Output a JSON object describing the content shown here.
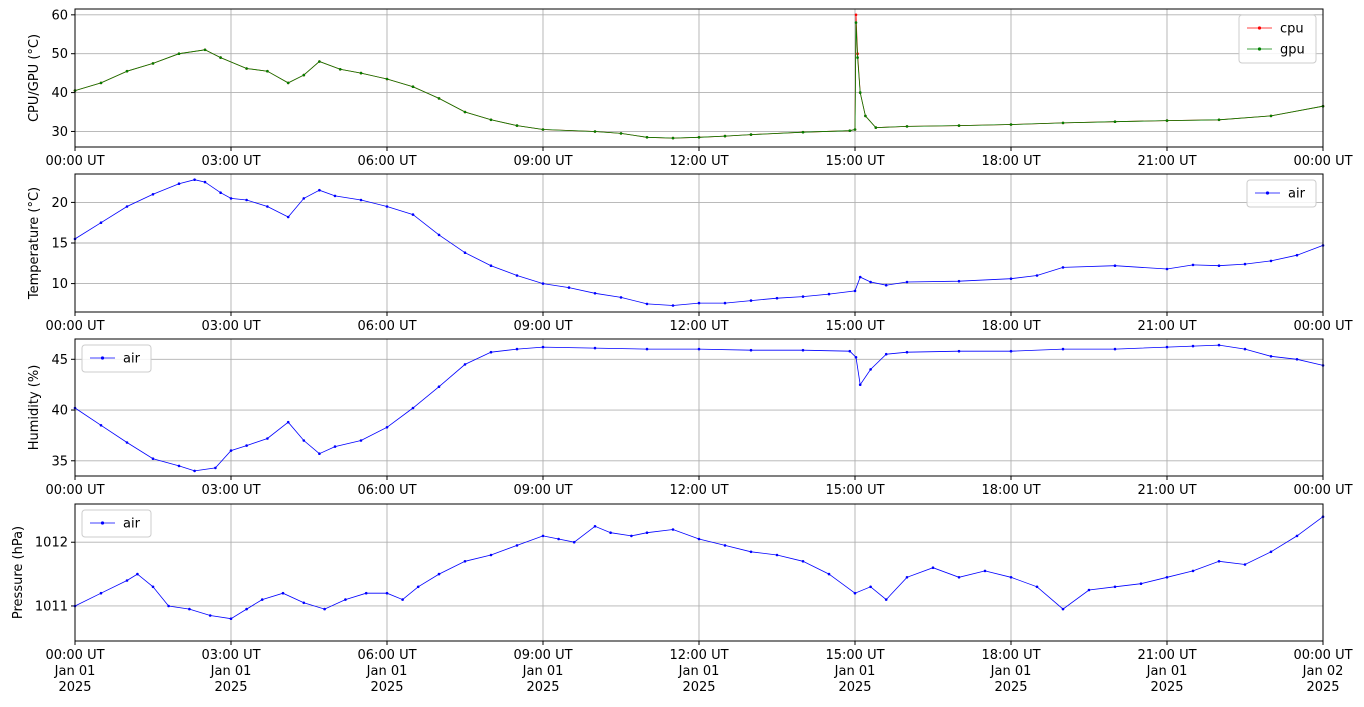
{
  "chart_data": [
    {
      "type": "line",
      "ylabel": "CPU/GPU (°C)",
      "ylim": [
        26,
        61.5
      ],
      "yticks": [
        30,
        40,
        50,
        60
      ],
      "grid": true,
      "legend_placement": "top-right",
      "x_hours": [
        0,
        3,
        6,
        9,
        12,
        15,
        18,
        21,
        24
      ],
      "x_tick_labels": [
        "00:00 UT",
        "03:00 UT",
        "06:00 UT",
        "09:00 UT",
        "12:00 UT",
        "15:00 UT",
        "18:00 UT",
        "21:00 UT",
        "00:00 UT"
      ],
      "series": [
        {
          "name": "cpu",
          "color": "#ff0000",
          "x": [
            0,
            0.5,
            1,
            1.5,
            2,
            2.5,
            2.8,
            3.3,
            3.7,
            4.1,
            4.4,
            4.7,
            5.1,
            5.5,
            6,
            6.5,
            7,
            7.5,
            8,
            8.5,
            9,
            10,
            10.5,
            11,
            11.5,
            12,
            12.5,
            13,
            14,
            14.9,
            15.0,
            15.02,
            15.05,
            15.1,
            15.2,
            15.4,
            16,
            17,
            18,
            19,
            20,
            21,
            22,
            23,
            24
          ],
          "y": [
            40.5,
            42.5,
            45.5,
            47.5,
            50,
            51,
            49,
            46.2,
            45.5,
            42.5,
            44.5,
            48,
            46,
            45,
            43.5,
            41.5,
            38.5,
            35,
            33,
            31.5,
            30.5,
            30,
            29.5,
            28.5,
            28.3,
            28.5,
            28.8,
            29.2,
            29.8,
            30.2,
            30.5,
            60,
            50,
            40,
            34,
            31,
            31.3,
            31.5,
            31.8,
            32.2,
            32.5,
            32.8,
            33,
            34,
            36.5
          ]
        },
        {
          "name": "gpu",
          "color": "#008000",
          "x": [
            0,
            0.5,
            1,
            1.5,
            2,
            2.5,
            2.8,
            3.3,
            3.7,
            4.1,
            4.4,
            4.7,
            5.1,
            5.5,
            6,
            6.5,
            7,
            7.5,
            8,
            8.5,
            9,
            10,
            10.5,
            11,
            11.5,
            12,
            12.5,
            13,
            14,
            14.9,
            15.0,
            15.02,
            15.05,
            15.1,
            15.2,
            15.4,
            16,
            17,
            18,
            19,
            20,
            21,
            22,
            23,
            24
          ],
          "y": [
            40.5,
            42.5,
            45.5,
            47.5,
            50,
            51,
            49,
            46.2,
            45.5,
            42.5,
            44.5,
            48,
            46,
            45,
            43.5,
            41.5,
            38.5,
            35,
            33,
            31.5,
            30.5,
            30,
            29.5,
            28.5,
            28.3,
            28.5,
            28.8,
            29.2,
            29.8,
            30.2,
            30.5,
            58,
            49,
            40,
            34,
            31,
            31.3,
            31.5,
            31.8,
            32.2,
            32.5,
            32.8,
            33,
            34,
            36.5
          ]
        }
      ]
    },
    {
      "type": "line",
      "ylabel": "Temperature (°C)",
      "ylim": [
        6.5,
        23.5
      ],
      "yticks": [
        10,
        15,
        20
      ],
      "grid": true,
      "legend_placement": "top-right",
      "x_hours": [
        0,
        3,
        6,
        9,
        12,
        15,
        18,
        21,
        24
      ],
      "x_tick_labels": [
        "00:00 UT",
        "03:00 UT",
        "06:00 UT",
        "09:00 UT",
        "12:00 UT",
        "15:00 UT",
        "18:00 UT",
        "21:00 UT",
        "00:00 UT"
      ],
      "series": [
        {
          "name": "air",
          "color": "#0000ff",
          "x": [
            0,
            0.5,
            1,
            1.5,
            2,
            2.3,
            2.5,
            2.8,
            3,
            3.3,
            3.7,
            4.1,
            4.4,
            4.7,
            5,
            5.5,
            6,
            6.5,
            7,
            7.5,
            8,
            8.5,
            9,
            9.5,
            10,
            10.5,
            11,
            11.5,
            12,
            12.5,
            13,
            13.5,
            14,
            14.5,
            15,
            15.1,
            15.3,
            15.6,
            16,
            17,
            18,
            18.5,
            19,
            20,
            21,
            21.5,
            22,
            22.5,
            23,
            23.5,
            24
          ],
          "y": [
            15.5,
            17.5,
            19.5,
            21,
            22.3,
            22.8,
            22.5,
            21.2,
            20.5,
            20.3,
            19.5,
            18.2,
            20.5,
            21.5,
            20.8,
            20.3,
            19.5,
            18.5,
            16,
            13.8,
            12.2,
            11,
            10,
            9.5,
            8.8,
            8.3,
            7.5,
            7.3,
            7.6,
            7.6,
            7.9,
            8.2,
            8.4,
            8.7,
            9.1,
            10.8,
            10.2,
            9.8,
            10.2,
            10.3,
            10.6,
            11,
            12,
            12.2,
            11.8,
            12.3,
            12.2,
            12.4,
            12.8,
            13.5,
            14.7
          ]
        }
      ]
    },
    {
      "type": "line",
      "ylabel": "Humidity (%)",
      "ylim": [
        33.5,
        47
      ],
      "yticks": [
        35,
        40,
        45
      ],
      "grid": true,
      "legend_placement": "top-left",
      "x_hours": [
        0,
        3,
        6,
        9,
        12,
        15,
        18,
        21,
        24
      ],
      "x_tick_labels": [
        "00:00 UT",
        "03:00 UT",
        "06:00 UT",
        "09:00 UT",
        "12:00 UT",
        "15:00 UT",
        "18:00 UT",
        "21:00 UT",
        "00:00 UT"
      ],
      "series": [
        {
          "name": "air",
          "color": "#0000ff",
          "x": [
            0,
            0.5,
            1,
            1.5,
            2,
            2.3,
            2.7,
            3,
            3.3,
            3.7,
            4.1,
            4.4,
            4.7,
            5,
            5.5,
            6,
            6.5,
            7,
            7.5,
            8,
            8.5,
            9,
            10,
            11,
            12,
            13,
            14,
            14.9,
            15.02,
            15.1,
            15.3,
            15.6,
            16,
            17,
            18,
            19,
            20,
            21,
            21.5,
            22,
            22.5,
            23,
            23.5,
            24
          ],
          "y": [
            40.2,
            38.5,
            36.8,
            35.2,
            34.5,
            34,
            34.3,
            36,
            36.5,
            37.2,
            38.8,
            37,
            35.7,
            36.4,
            37,
            38.3,
            40.2,
            42.3,
            44.5,
            45.7,
            46,
            46.2,
            46.1,
            46,
            46,
            45.9,
            45.9,
            45.8,
            45.2,
            42.5,
            44,
            45.5,
            45.7,
            45.8,
            45.8,
            46,
            46,
            46.2,
            46.3,
            46.4,
            46,
            45.3,
            45,
            44.4
          ]
        }
      ]
    },
    {
      "type": "line",
      "ylabel": "Pressure (hPa)",
      "ylim": [
        1010.45,
        1012.6
      ],
      "yticks": [
        1011,
        1012
      ],
      "grid": true,
      "legend_placement": "top-left",
      "x_hours": [
        0,
        3,
        6,
        9,
        12,
        15,
        18,
        21,
        24
      ],
      "x_tick_labels": [
        "00:00 UT",
        "03:00 UT",
        "06:00 UT",
        "09:00 UT",
        "12:00 UT",
        "15:00 UT",
        "18:00 UT",
        "21:00 UT",
        "00:00 UT"
      ],
      "x_tick_dates": [
        "Jan 01",
        "Jan 01",
        "Jan 01",
        "Jan 01",
        "Jan 01",
        "Jan 01",
        "Jan 01",
        "Jan 01",
        "Jan 02"
      ],
      "x_tick_years": [
        "2025",
        "2025",
        "2025",
        "2025",
        "2025",
        "2025",
        "2025",
        "2025",
        "2025"
      ],
      "series": [
        {
          "name": "air",
          "color": "#0000ff",
          "x": [
            0,
            0.5,
            1,
            1.2,
            1.5,
            1.8,
            2.2,
            2.6,
            3,
            3.3,
            3.6,
            4,
            4.4,
            4.8,
            5.2,
            5.6,
            6,
            6.3,
            6.6,
            7,
            7.5,
            8,
            8.5,
            9,
            9.3,
            9.6,
            10,
            10.3,
            10.7,
            11,
            11.5,
            12,
            12.5,
            13,
            13.5,
            14,
            14.5,
            15,
            15.3,
            15.6,
            16,
            16.5,
            17,
            17.5,
            18,
            18.5,
            19,
            19.5,
            20,
            20.5,
            21,
            21.5,
            22,
            22.5,
            23,
            23.5,
            24
          ],
          "y": [
            1011,
            1011.2,
            1011.4,
            1011.5,
            1011.3,
            1011,
            1010.95,
            1010.85,
            1010.8,
            1010.95,
            1011.1,
            1011.2,
            1011.05,
            1010.95,
            1011.1,
            1011.2,
            1011.2,
            1011.1,
            1011.3,
            1011.5,
            1011.7,
            1011.8,
            1011.95,
            1012.1,
            1012.05,
            1012.0,
            1012.25,
            1012.15,
            1012.1,
            1012.15,
            1012.2,
            1012.05,
            1011.95,
            1011.85,
            1011.8,
            1011.7,
            1011.5,
            1011.2,
            1011.3,
            1011.1,
            1011.45,
            1011.6,
            1011.45,
            1011.55,
            1011.45,
            1011.3,
            1010.95,
            1011.25,
            1011.3,
            1011.35,
            1011.45,
            1011.55,
            1011.7,
            1011.65,
            1011.85,
            1012.1,
            1012.4
          ]
        }
      ]
    }
  ]
}
